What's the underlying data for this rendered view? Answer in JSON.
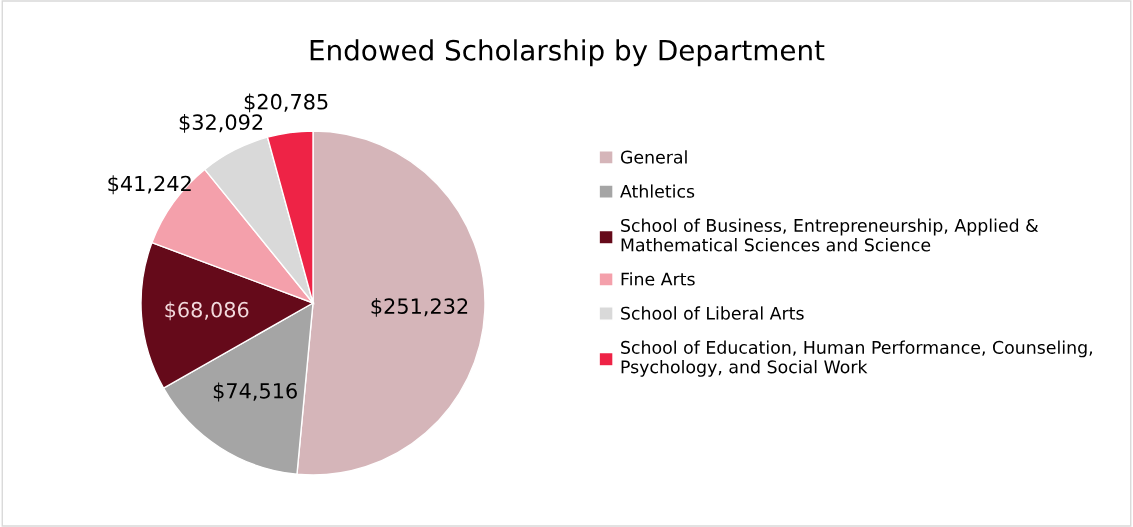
{
  "chart_data": {
    "type": "pie",
    "title": "Endowed Scholarship by Department",
    "categories": [
      "General",
      "Athletics",
      "School of Business, Entrepreneurship, Applied & Mathematical Sciences and Science",
      "Fine Arts",
      "School of Liberal Arts",
      "School of Education, Human Performance, Counseling, Psychology, and Social Work"
    ],
    "values": [
      251232,
      74516,
      68086,
      41242,
      32092,
      20785
    ],
    "value_labels": [
      "$251,232",
      "$74,516",
      "$68,086",
      "$41,242",
      "$32,092",
      "$20,785"
    ],
    "colors": [
      "#d5b5b9",
      "#a5a5a5",
      "#650a1a",
      "#f4a0ab",
      "#d9d9d9",
      "#ee2346"
    ],
    "legend": "right"
  }
}
